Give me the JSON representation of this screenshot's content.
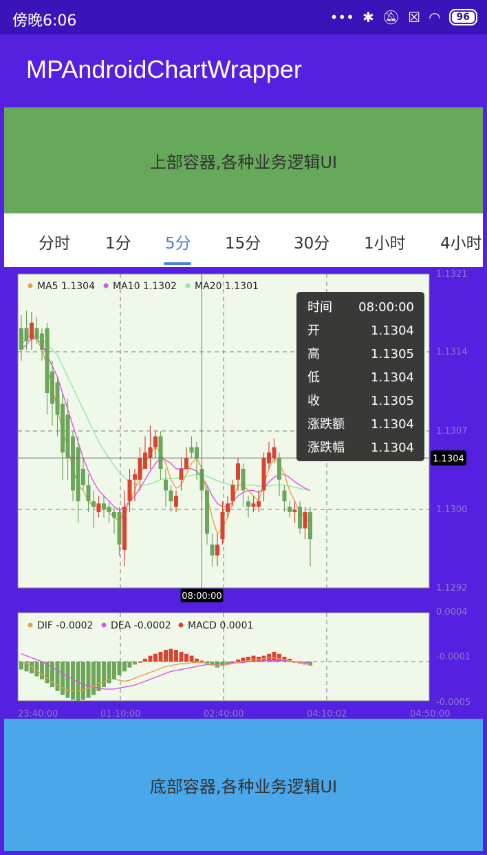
{
  "status_bar": {
    "time": "傍晚6:06",
    "icons": [
      "dots-icon",
      "bluetooth-icon",
      "mute-icon",
      "sim-icon",
      "wifi-icon",
      "battery-icon"
    ],
    "battery": "96"
  },
  "app_bar": {
    "title": "MPAndroidChartWrapper"
  },
  "top_container": {
    "text": "上部容器,各种业务逻辑UI"
  },
  "tabs": [
    "分时",
    "1分",
    "5分",
    "15分",
    "30分",
    "1小时",
    "4小时"
  ],
  "active_tab": "5分",
  "bottom_container": {
    "text": "底部容器,各种业务逻辑UI"
  },
  "colors": {
    "accent": "#4A7FE0",
    "rise": "#D9432F",
    "fall": "#6BA65A",
    "ma5": "#E8A04A",
    "ma10": "#D957E0",
    "ma20": "#8EE8A8",
    "chart_bg": "#F0F8EA"
  },
  "chart_data": [
    {
      "type": "candlestick",
      "legend": [
        {
          "label": "MA5 1.1304",
          "color": "#E8A04A"
        },
        {
          "label": "MA10 1.1302",
          "color": "#D957E0"
        },
        {
          "label": "MA20 1.1301",
          "color": "#8EE8A8"
        }
      ],
      "y_ticks": [
        "1.1321",
        "1.1314",
        "1.1307",
        "1.1300",
        "1.1292"
      ],
      "ylim": [
        1.1292,
        1.1321
      ],
      "highlight": {
        "price_label": "1.1304",
        "time_label": "08:00:00",
        "price": 1.1304,
        "index": 37
      },
      "tooltip": [
        {
          "k": "时间",
          "v": "08:00:00"
        },
        {
          "k": "开",
          "v": "1.1304"
        },
        {
          "k": "高",
          "v": "1.1305"
        },
        {
          "k": "低",
          "v": "1.1304"
        },
        {
          "k": "收",
          "v": "1.1305"
        },
        {
          "k": "涨跌额",
          "v": "1.1304"
        },
        {
          "k": "涨跌幅",
          "v": "1.1304"
        }
      ],
      "candles": [
        [
          1.1316,
          1.1314,
          1.13172,
          1.1313
        ],
        [
          1.1316,
          1.13148,
          1.13176,
          1.1314
        ],
        [
          1.1315,
          1.13165,
          1.13175,
          1.1314
        ],
        [
          1.1316,
          1.1315,
          1.1317,
          1.13145
        ],
        [
          1.13155,
          1.1314,
          1.1316,
          1.1313
        ],
        [
          1.1316,
          1.131,
          1.13165,
          1.1308
        ],
        [
          1.1312,
          1.1309,
          1.1313,
          1.1307
        ],
        [
          1.1311,
          1.1308,
          1.13115,
          1.1306
        ],
        [
          1.1309,
          1.13045,
          1.131,
          1.1302
        ],
        [
          1.1308,
          1.1304,
          1.13095,
          1.1302
        ],
        [
          1.1306,
          1.1301,
          1.13065,
          1.13
        ],
        [
          1.1305,
          1.13,
          1.1306,
          1.1298
        ],
        [
          1.1303,
          1.13015,
          1.1304,
          1.1301
        ],
        [
          1.13015,
          1.13,
          1.13025,
          1.1299
        ],
        [
          1.13,
          1.12995,
          1.1301,
          1.12975
        ],
        [
          1.1299,
          1.12998,
          1.13005,
          1.12985
        ],
        [
          1.12998,
          1.12993,
          1.13005,
          1.12985
        ],
        [
          1.12995,
          1.1299,
          1.13,
          1.1298
        ],
        [
          1.1299,
          1.12985,
          1.12995,
          1.1297
        ],
        [
          1.1299,
          1.1296,
          1.12995,
          1.1295
        ],
        [
          1.12955,
          1.12995,
          1.1301,
          1.1294
        ],
        [
          1.13,
          1.1302,
          1.1303,
          1.1299
        ],
        [
          1.1302,
          1.13025,
          1.1303,
          1.13
        ],
        [
          1.1302,
          1.1304,
          1.1305,
          1.1301
        ],
        [
          1.1303,
          1.13045,
          1.1306,
          1.1303
        ],
        [
          1.1304,
          1.1305,
          1.1307,
          1.1303
        ],
        [
          1.1305,
          1.1306,
          1.13065,
          1.1304
        ],
        [
          1.1306,
          1.1303,
          1.13065,
          1.1302
        ],
        [
          1.1302,
          1.1301,
          1.1303,
          1.12995
        ],
        [
          1.1301,
          1.13,
          1.13015,
          1.1299
        ],
        [
          1.12995,
          1.13005,
          1.1301,
          1.1299
        ],
        [
          1.1302,
          1.1303,
          1.1304,
          1.1301
        ],
        [
          1.1303,
          1.1304,
          1.1305,
          1.1303
        ],
        [
          1.1305,
          1.13045,
          1.1306,
          1.1304
        ],
        [
          1.1305,
          1.1304,
          1.13055,
          1.1302
        ],
        [
          1.1303,
          1.1301,
          1.13035,
          1.13
        ],
        [
          1.1301,
          1.1297,
          1.13015,
          1.1296
        ],
        [
          1.1296,
          1.1295,
          1.1297,
          1.1294
        ],
        [
          1.1295,
          1.1296,
          1.1297,
          1.1294
        ],
        [
          1.12965,
          1.1299,
          1.13,
          1.1296
        ],
        [
          1.1299,
          1.12998,
          1.13005,
          1.12985
        ],
        [
          1.13,
          1.13015,
          1.1302,
          1.12995
        ],
        [
          1.1302,
          1.13035,
          1.1304,
          1.1301
        ],
        [
          1.1303,
          1.1301,
          1.13035,
          1.12995
        ],
        [
          1.13,
          1.12995,
          1.13005,
          1.12985
        ],
        [
          1.12995,
          1.12998,
          1.13005,
          1.1299
        ],
        [
          1.12995,
          1.13,
          1.1301,
          1.1299
        ],
        [
          1.1301,
          1.1304,
          1.13045,
          1.13
        ],
        [
          1.13035,
          1.13045,
          1.13055,
          1.1303
        ],
        [
          1.1304,
          1.1305,
          1.13058,
          1.13035
        ],
        [
          1.1304,
          1.1302,
          1.13045,
          1.13005
        ],
        [
          1.1301,
          1.13,
          1.13015,
          1.1299
        ],
        [
          1.12995,
          1.1299,
          1.13,
          1.12985
        ],
        [
          1.1299,
          1.12992,
          1.13,
          1.1298
        ],
        [
          1.12995,
          1.12975,
          1.13,
          1.1297
        ],
        [
          1.12975,
          1.1299,
          1.12995,
          1.12965
        ],
        [
          1.1299,
          1.12965,
          1.12995,
          1.1294
        ]
      ],
      "ma5": [
        1.13145,
        1.1315,
        1.13155,
        1.1315,
        1.1314,
        1.13125,
        1.13105,
        1.13085,
        1.13065,
        1.1305,
        1.1303,
        1.13015,
        1.1301,
        1.13,
        1.12995,
        1.12995,
        1.12995,
        1.1299,
        1.12985,
        1.12982,
        1.1299,
        1.13,
        1.1301,
        1.13025,
        1.13035,
        1.13045,
        1.1305,
        1.13045,
        1.13035,
        1.1302,
        1.13012,
        1.13015,
        1.13025,
        1.13035,
        1.1304,
        1.1303,
        1.13005,
        1.12985,
        1.1297,
        1.12975,
        1.12985,
        1.13,
        1.13015,
        1.13015,
        1.1301,
        1.13005,
        1.13,
        1.13015,
        1.1303,
        1.1304,
        1.13035,
        1.13025,
        1.1301,
        1.13,
        1.1299,
        1.12985,
        1.1298
      ],
      "ma10": [
        1.1314,
        1.13145,
        1.1315,
        1.1315,
        1.13145,
        1.13135,
        1.13125,
        1.13115,
        1.131,
        1.13085,
        1.1307,
        1.13055,
        1.1304,
        1.13028,
        1.13018,
        1.1301,
        1.13005,
        1.13,
        1.12995,
        1.12992,
        1.12995,
        1.13,
        1.13005,
        1.13012,
        1.1302,
        1.13028,
        1.13035,
        1.1304,
        1.13038,
        1.13035,
        1.1303,
        1.1303,
        1.1303,
        1.1303,
        1.13028,
        1.13022,
        1.13015,
        1.13005,
        1.12998,
        1.12995,
        1.12995,
        1.13,
        1.13005,
        1.13008,
        1.1301,
        1.1301,
        1.13008,
        1.13012,
        1.13018,
        1.13022,
        1.13025,
        1.13025,
        1.13022,
        1.13018,
        1.13015,
        1.13012,
        1.1301
      ],
      "ma20": [
        1.1315,
        1.13152,
        1.13153,
        1.13152,
        1.1315,
        1.13145,
        1.1314,
        1.13135,
        1.13125,
        1.13115,
        1.13105,
        1.13095,
        1.13085,
        1.13075,
        1.13065,
        1.13055,
        1.13047,
        1.1304,
        1.13033,
        1.13027,
        1.13022,
        1.13018,
        1.13016,
        1.13015,
        1.13015,
        1.13016,
        1.13018,
        1.1302,
        1.13021,
        1.13021,
        1.13021,
        1.13022,
        1.13023,
        1.13024,
        1.13025,
        1.13024,
        1.13023,
        1.13021,
        1.13019,
        1.13017,
        1.13016,
        1.13015,
        1.13015,
        1.13015,
        1.13015,
        1.13015,
        1.13014,
        1.13014,
        1.13014,
        1.13015,
        1.13015,
        1.13015,
        1.13014,
        1.13013,
        1.13012,
        1.13011,
        1.1301
      ]
    },
    {
      "type": "macd",
      "legend": [
        {
          "label": "DIF -0.0002",
          "color": "#E8A04A"
        },
        {
          "label": "DEA -0.0002",
          "color": "#D957E0"
        },
        {
          "label": "MACD 0.0001",
          "color": "#D9432F"
        }
      ],
      "y_ticks": [
        "0.0004",
        "-0.0001",
        "-0.0005"
      ],
      "ylim": [
        -0.0005,
        0.0004
      ],
      "zero": -0.0001,
      "macd": [
        -8e-05,
        -0.0001,
        -0.00012,
        -0.00015,
        -0.00018,
        -0.00022,
        -0.00026,
        -0.0003,
        -0.00034,
        -0.00037,
        -0.00039,
        -0.0004,
        -0.00039,
        -0.00037,
        -0.00034,
        -0.0003,
        -0.00026,
        -0.00022,
        -0.00018,
        -0.00014,
        -0.0001,
        -6e-05,
        -3e-05,
        0.0,
        3e-05,
        6e-05,
        8e-05,
        0.0001,
        0.00012,
        0.00013,
        0.00012,
        0.0001,
        8e-05,
        6e-05,
        3e-05,
        1e-05,
        -2e-05,
        -4e-05,
        -6e-05,
        -4e-05,
        -2e-05,
        0.0,
        2e-05,
        4e-05,
        5e-05,
        6e-05,
        5e-05,
        6e-05,
        8e-05,
        0.0001,
        8e-05,
        5e-05,
        3e-05,
        0.0,
        -2e-05,
        -3e-05,
        -4e-05
      ],
      "dif": [
        -0.0001,
        -0.00012,
        -0.00015,
        -0.00019,
        -0.00023,
        -0.00027,
        -0.00031,
        -0.00034,
        -0.00037,
        -0.00039,
        -0.0004,
        -0.0004,
        -0.00039,
        -0.00037,
        -0.00035,
        -0.00032,
        -0.0003,
        -0.00028,
        -0.00028,
        -0.00029,
        -0.0003,
        -0.00029,
        -0.00027,
        -0.00025,
        -0.00023,
        -0.00021,
        -0.00019,
        -0.00017,
        -0.00015,
        -0.00014,
        -0.00013,
        -0.00012,
        -0.00012,
        -0.00011,
        -0.00011,
        -0.00011,
        -0.00012,
        -0.00013,
        -0.00014,
        -0.00014,
        -0.00013,
        -0.00012,
        -0.00011,
        -0.0001,
        -9e-05,
        -8e-05,
        -8e-05,
        -7e-05,
        -6e-05,
        -6e-05,
        -7e-05,
        -8e-05,
        -9e-05,
        -0.0001,
        -0.00011,
        -0.00012,
        -0.00013
      ],
      "dea": [
        -2e-05,
        -4e-05,
        -6e-05,
        -8e-05,
        -0.0001,
        -0.00013,
        -0.00016,
        -0.00019,
        -0.00022,
        -0.00025,
        -0.00028,
        -0.00031,
        -0.00033,
        -0.00035,
        -0.00036,
        -0.00037,
        -0.00038,
        -0.00038,
        -0.00038,
        -0.00037,
        -0.00036,
        -0.00035,
        -0.00034,
        -0.00032,
        -0.0003,
        -0.00028,
        -0.00026,
        -0.00024,
        -0.00022,
        -0.0002,
        -0.00019,
        -0.00018,
        -0.00017,
        -0.00016,
        -0.00015,
        -0.00014,
        -0.00013,
        -0.00013,
        -0.00012,
        -0.00012,
        -0.00012,
        -0.00011,
        -0.00011,
        -0.00011,
        -0.0001,
        -0.0001,
        -0.0001,
        -9e-05,
        -9e-05,
        -9e-05,
        -9e-05,
        -9e-05,
        -0.0001,
        -0.0001,
        -0.0001,
        -0.00011,
        -0.00011
      ]
    }
  ],
  "x_ticks": [
    "23:40:00",
    "01:10:00",
    "02:40:00",
    "04:10:02",
    "04:50:00"
  ]
}
